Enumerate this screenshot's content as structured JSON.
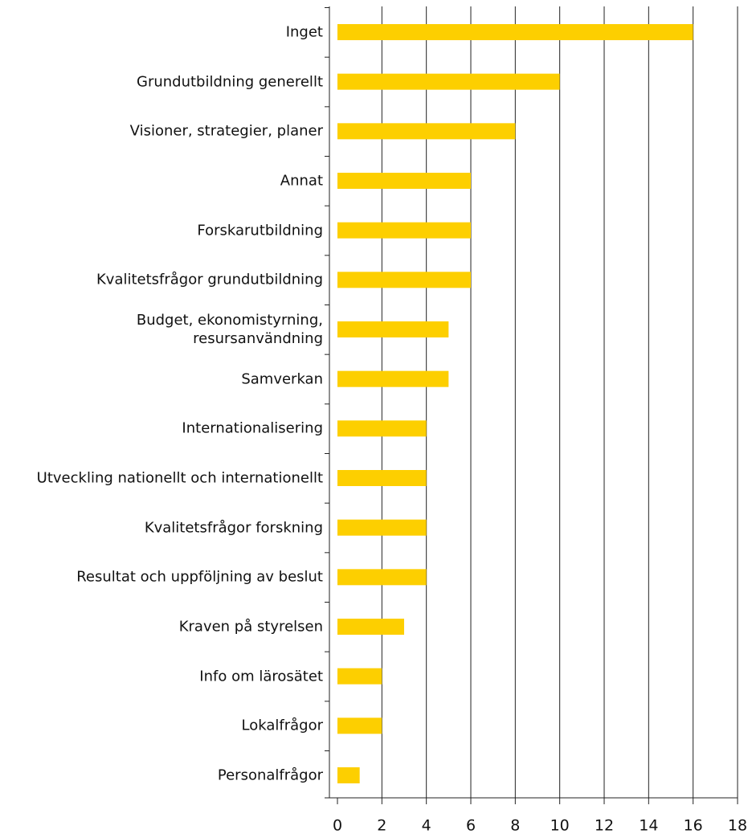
{
  "chart_data": {
    "type": "barh",
    "categories": [
      "Inget",
      "Grundutbildning generellt",
      "Visioner, strategier, planer",
      "Annat",
      "Forskarutbildning",
      "Kvalitetsfrågor grundutbildning",
      "Budget, ekonomistyrning,\nresursanvändning",
      "Samverkan",
      "Internationalisering",
      "Utveckling nationellt och internationellt",
      "Kvalitetsfrågor forskning",
      "Resultat och uppföljning av beslut",
      "Kraven på styrelsen",
      "Info om lärosätet",
      "Lokalfrågor",
      "Personalfrågor"
    ],
    "values": [
      16,
      10,
      8,
      6,
      6,
      6,
      5,
      5,
      4,
      4,
      4,
      4,
      3,
      2,
      2,
      1
    ],
    "color": "#fdcf00",
    "xlim": [
      0,
      18
    ],
    "xticks": [
      0,
      2,
      4,
      6,
      8,
      10,
      12,
      14,
      16,
      18
    ],
    "grid": true
  }
}
